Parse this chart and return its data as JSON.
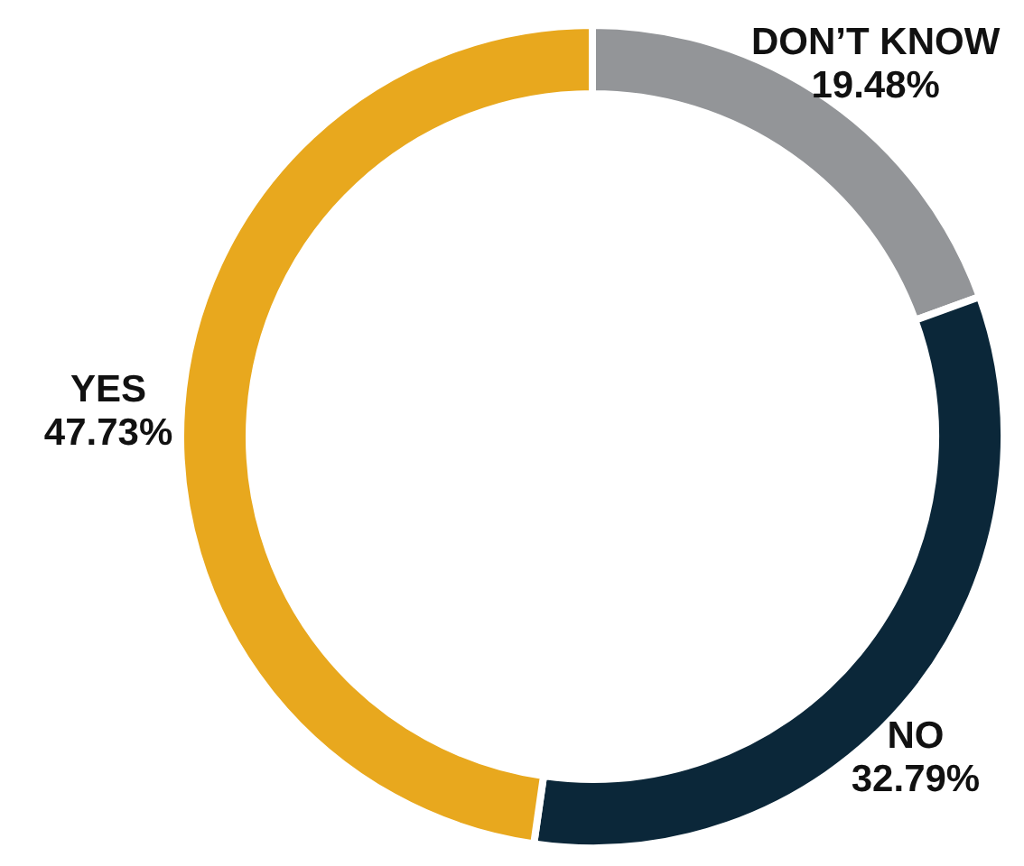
{
  "chart_data": {
    "type": "donut",
    "categories": [
      "DON’T KNOW",
      "NO",
      "YES"
    ],
    "values": [
      19.48,
      32.79,
      47.73
    ],
    "colors": [
      "#939598",
      "#0b2739",
      "#e8a81e"
    ],
    "value_labels": [
      "19.48%",
      "32.79%",
      "47.73%"
    ],
    "legend": false
  }
}
